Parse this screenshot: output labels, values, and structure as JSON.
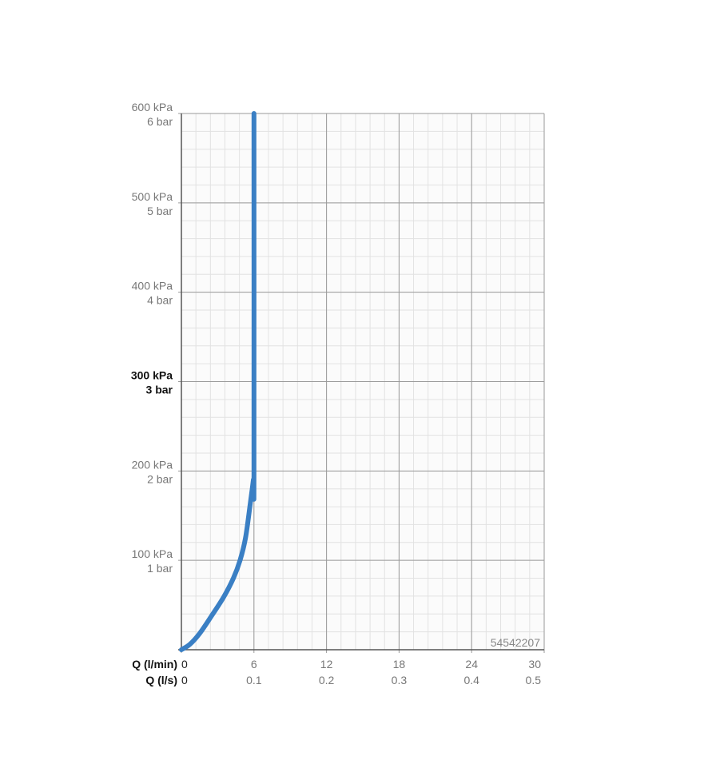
{
  "chart_data": {
    "type": "line",
    "title": "",
    "xlabel": "Q (l/min)",
    "xlabel2": "Q (l/s)",
    "ylabel": "",
    "xlim": [
      0,
      30
    ],
    "ylim": [
      0,
      600
    ],
    "x_ticks": [
      0,
      6,
      12,
      18,
      24,
      30
    ],
    "x_tick_labels": [
      "0",
      "6",
      "12",
      "18",
      "24",
      "30"
    ],
    "x2_tick_labels": [
      "0",
      "0.1",
      "0.2",
      "0.3",
      "0.4",
      "0.5"
    ],
    "y_ticks": [
      100,
      200,
      300,
      400,
      500,
      600
    ],
    "y_tick_labels_kpa": [
      "100 kPa",
      "200 kPa",
      "300 kPa",
      "400 kPa",
      "500 kPa",
      "600 kPa"
    ],
    "y_tick_labels_bar": [
      "1 bar",
      "2 bar",
      "3 bar",
      "4 bar",
      "5 bar",
      "6 bar"
    ],
    "y_highlight_tick": 300,
    "grid": true,
    "annotation": "54542207",
    "series": [
      {
        "color": "#3a7fc4",
        "x": [
          0,
          0.7,
          1.5,
          2.5,
          3.5,
          4.3,
          4.85,
          5.3,
          5.7,
          5.95,
          6.0,
          6.0
        ],
        "y": [
          0,
          6,
          18,
          38,
          59,
          80,
          100,
          125,
          164,
          190,
          200,
          600
        ]
      }
    ]
  }
}
